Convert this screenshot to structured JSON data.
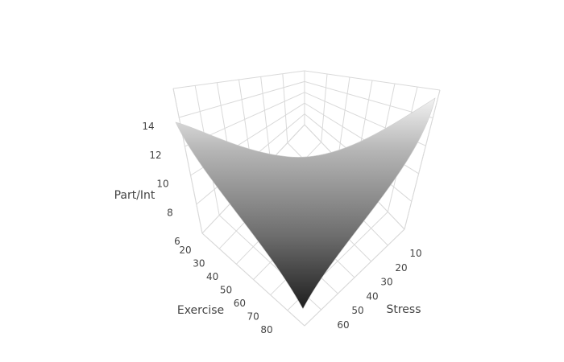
{
  "chart_data": {
    "type": "surface",
    "title": "",
    "axes": {
      "x": {
        "label": "Exercise",
        "ticks": [
          20,
          30,
          40,
          50,
          60,
          70,
          80
        ],
        "range": [
          20,
          80
        ]
      },
      "y": {
        "label": "Stress",
        "ticks": [
          10,
          20,
          30,
          40,
          50,
          60
        ],
        "range": [
          5,
          60
        ]
      },
      "z": {
        "label": "Part/Int",
        "ticks": [
          6,
          8,
          10,
          12,
          14
        ],
        "range": [
          6,
          14
        ]
      }
    },
    "grid": true,
    "colorscale": "greys",
    "surface": {
      "exercise": [
        20,
        30,
        40,
        50,
        60,
        70,
        80
      ],
      "stress": [
        5,
        15,
        25,
        35,
        45,
        55,
        60
      ],
      "part_int": [
        [
          14.2,
          13.4,
          12.7,
          12.1,
          11.7,
          11.4,
          11.4
        ],
        [
          13.2,
          12.2,
          11.4,
          10.7,
          10.2,
          9.9,
          9.8
        ],
        [
          12.4,
          11.3,
          10.4,
          9.6,
          9.0,
          8.6,
          8.5
        ],
        [
          11.8,
          10.6,
          9.6,
          8.8,
          8.1,
          7.6,
          7.4
        ],
        [
          11.4,
          10.1,
          9.0,
          8.1,
          7.3,
          6.8,
          6.6
        ],
        [
          11.2,
          9.8,
          8.6,
          7.6,
          6.8,
          6.2,
          6.0
        ],
        [
          11.2,
          9.7,
          8.4,
          7.3,
          6.4,
          5.8,
          5.6
        ]
      ]
    }
  }
}
